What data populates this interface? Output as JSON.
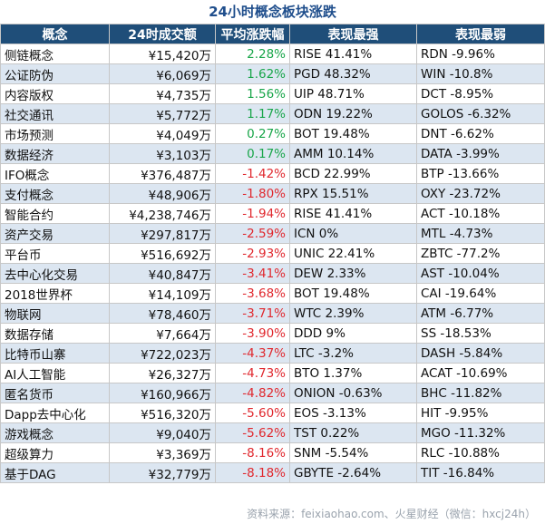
{
  "title": "24小时概念板块涨跌",
  "headers": [
    "概念",
    "24时成交额",
    "平均涨跌幅",
    "表现最强",
    "表现最弱"
  ],
  "colors": {
    "header_bg": "#1f4e79",
    "stripe": "#dce6f1",
    "positive": "#19a64a",
    "negative": "#e0282e",
    "title": "#1f4e8c"
  },
  "rows": [
    {
      "name": "侧链概念",
      "volume": "¥15,420万",
      "change": "2.28%",
      "best": "RISE 41.41%",
      "worst": "RDN -9.96%"
    },
    {
      "name": "公证防伪",
      "volume": "¥6,069万",
      "change": "1.62%",
      "best": "PGD 48.32%",
      "worst": "WIN -10.8%"
    },
    {
      "name": "内容版权",
      "volume": "¥4,735万",
      "change": "1.56%",
      "best": "UIP 48.71%",
      "worst": "DCT -8.95%"
    },
    {
      "name": "社交通讯",
      "volume": "¥5,772万",
      "change": "1.17%",
      "best": "ODN 19.22%",
      "worst": "GOLOS -6.32%"
    },
    {
      "name": "市场预测",
      "volume": "¥4,049万",
      "change": "0.27%",
      "best": "BOT 19.48%",
      "worst": "DNT -6.62%"
    },
    {
      "name": "数据经济",
      "volume": "¥3,103万",
      "change": "0.17%",
      "best": "AMM 10.14%",
      "worst": "DATA -3.99%"
    },
    {
      "name": "IFO概念",
      "volume": "¥376,487万",
      "change": "-1.42%",
      "best": "BCD 22.99%",
      "worst": "BTP -13.66%"
    },
    {
      "name": "支付概念",
      "volume": "¥48,906万",
      "change": "-1.80%",
      "best": "RPX 15.51%",
      "worst": "OXY -23.72%"
    },
    {
      "name": "智能合约",
      "volume": "¥4,238,746万",
      "change": "-1.94%",
      "best": "RISE 41.41%",
      "worst": "ACT -10.18%"
    },
    {
      "name": "资产交易",
      "volume": "¥297,817万",
      "change": "-2.59%",
      "best": "ICN 0%",
      "worst": "MTL -4.73%"
    },
    {
      "name": "平台币",
      "volume": "¥516,692万",
      "change": "-2.93%",
      "best": "UNIC 22.41%",
      "worst": "ZBTC -77.2%"
    },
    {
      "name": "去中心化交易",
      "volume": "¥40,847万",
      "change": "-3.41%",
      "best": "DEW 2.33%",
      "worst": "AST -10.04%"
    },
    {
      "name": "2018世界杯",
      "volume": "¥14,109万",
      "change": "-3.68%",
      "best": "BOT 19.48%",
      "worst": "CAI -19.64%"
    },
    {
      "name": "物联网",
      "volume": "¥78,460万",
      "change": "-3.71%",
      "best": "WTC 2.39%",
      "worst": "ATM -6.77%"
    },
    {
      "name": "数据存储",
      "volume": "¥7,664万",
      "change": "-3.90%",
      "best": "DDD 9%",
      "worst": "SS -18.53%"
    },
    {
      "name": "比特币山寨",
      "volume": "¥722,023万",
      "change": "-4.37%",
      "best": "LTC -3.2%",
      "worst": "DASH -5.84%"
    },
    {
      "name": "AI人工智能",
      "volume": "¥26,327万",
      "change": "-4.73%",
      "best": "BTO 1.37%",
      "worst": "ACAT -10.69%"
    },
    {
      "name": "匿名货币",
      "volume": "¥160,966万",
      "change": "-4.82%",
      "best": "ONION -0.63%",
      "worst": "BHC -11.82%"
    },
    {
      "name": "Dapp去中心化",
      "volume": "¥516,320万",
      "change": "-5.60%",
      "best": "EOS -3.13%",
      "worst": "HIT -9.95%"
    },
    {
      "name": "游戏概念",
      "volume": "¥9,040万",
      "change": "-5.62%",
      "best": "TST 0.22%",
      "worst": "MGO -11.32%"
    },
    {
      "name": "超级算力",
      "volume": "¥3,369万",
      "change": "-8.16%",
      "best": "SNM -5.54%",
      "worst": "RLC -10.88%"
    },
    {
      "name": "基于DAG",
      "volume": "¥32,779万",
      "change": "-8.18%",
      "best": "GBYTE -2.64%",
      "worst": "TIT -16.84%"
    }
  ],
  "footer": "资料来源：feixiaohao.com、火星财经（微信：hxcj24h）"
}
